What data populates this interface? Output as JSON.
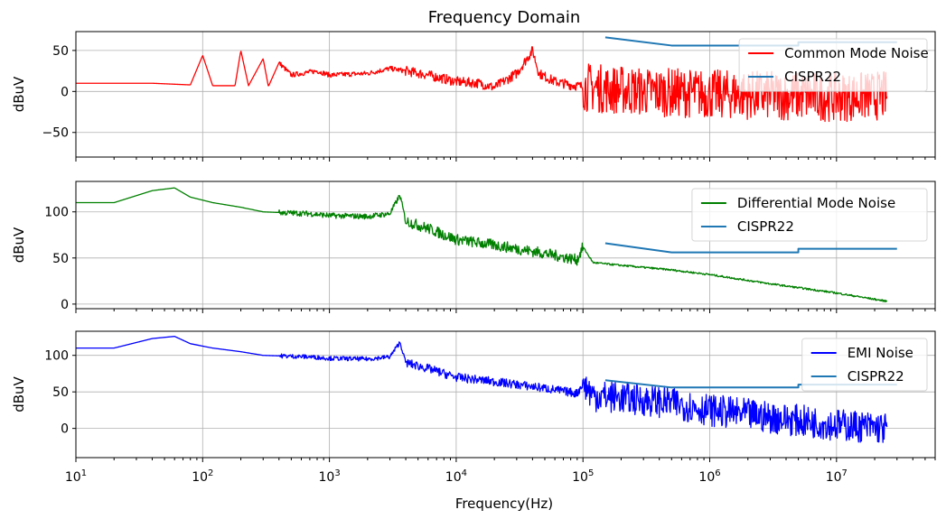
{
  "figure_title": "Frequency Domain",
  "xlabel": "Frequency(Hz)",
  "chart_data": [
    {
      "type": "line",
      "xscale": "log",
      "xlim": [
        10,
        60000000
      ],
      "ylim": [
        -80,
        73
      ],
      "ylabel": "dBuV",
      "yticks": [
        -50,
        0,
        50
      ],
      "grid": true,
      "legend_position": "top-right",
      "series": [
        {
          "name": "Common Mode Noise",
          "color": "#ff0000",
          "noise_band": true,
          "points": [
            [
              10,
              10
            ],
            [
              40,
              10
            ],
            [
              80,
              8
            ],
            [
              100,
              44
            ],
            [
              120,
              7
            ],
            [
              180,
              7
            ],
            [
              200,
              50
            ],
            [
              230,
              7
            ],
            [
              300,
              40
            ],
            [
              330,
              6
            ],
            [
              400,
              35
            ],
            [
              500,
              20
            ],
            [
              600,
              22
            ],
            [
              800,
              25
            ],
            [
              1000,
              20
            ],
            [
              2000,
              22
            ],
            [
              3000,
              28
            ],
            [
              4000,
              25
            ],
            [
              6000,
              20
            ],
            [
              10000,
              12
            ],
            [
              15000,
              10
            ],
            [
              20000,
              5
            ],
            [
              30000,
              22
            ],
            [
              40000,
              50
            ],
            [
              45000,
              22
            ],
            [
              60000,
              12
            ],
            [
              80000,
              8
            ],
            [
              100000,
              6
            ],
            [
              150000,
              3
            ],
            [
              300000,
              0
            ],
            [
              1000000,
              -3
            ],
            [
              3000000,
              -5
            ],
            [
              10000000,
              -7
            ],
            [
              25000000,
              -5
            ]
          ]
        },
        {
          "name": "CISPR22",
          "color": "#1f77b4",
          "points": [
            [
              150000,
              66
            ],
            [
              500000,
              56
            ],
            [
              5000000,
              56
            ],
            [
              5000000,
              60
            ],
            [
              30000000,
              60
            ]
          ]
        }
      ]
    },
    {
      "type": "line",
      "xscale": "log",
      "xlim": [
        10,
        60000000
      ],
      "ylim": [
        -5,
        133
      ],
      "ylabel": "dBuV",
      "yticks": [
        0,
        50,
        100
      ],
      "grid": true,
      "legend_position": "top-right",
      "series": [
        {
          "name": "Differential Mode Noise",
          "color": "#008000",
          "noise_band": true,
          "points": [
            [
              10,
              110
            ],
            [
              20,
              110
            ],
            [
              40,
              123
            ],
            [
              60,
              126
            ],
            [
              80,
              116
            ],
            [
              120,
              110
            ],
            [
              200,
              105
            ],
            [
              300,
              100
            ],
            [
              450,
              99
            ],
            [
              700,
              98
            ],
            [
              1000,
              96
            ],
            [
              2000,
              95
            ],
            [
              3000,
              98
            ],
            [
              3600,
              118
            ],
            [
              4000,
              90
            ],
            [
              6000,
              82
            ],
            [
              10000,
              70
            ],
            [
              20000,
              64
            ],
            [
              50000,
              55
            ],
            [
              90000,
              48
            ],
            [
              100000,
              62
            ],
            [
              120000,
              45
            ],
            [
              200000,
              42
            ],
            [
              500000,
              37
            ],
            [
              1000000,
              32
            ],
            [
              3000000,
              22
            ],
            [
              10000000,
              12
            ],
            [
              25000000,
              3
            ]
          ]
        },
        {
          "name": "CISPR22",
          "color": "#1f77b4",
          "points": [
            [
              150000,
              66
            ],
            [
              500000,
              56
            ],
            [
              5000000,
              56
            ],
            [
              5000000,
              60
            ],
            [
              30000000,
              60
            ]
          ]
        }
      ]
    },
    {
      "type": "line",
      "xscale": "log",
      "xlim": [
        10,
        60000000
      ],
      "ylim": [
        -40,
        133
      ],
      "ylabel": "dBuV",
      "yticks": [
        0,
        50,
        100
      ],
      "grid": true,
      "legend_position": "top-right",
      "series": [
        {
          "name": "EMI Noise",
          "color": "#0000ff",
          "noise_band": true,
          "points": [
            [
              10,
              110
            ],
            [
              20,
              110
            ],
            [
              40,
              123
            ],
            [
              60,
              126
            ],
            [
              80,
              116
            ],
            [
              120,
              110
            ],
            [
              200,
              105
            ],
            [
              300,
              100
            ],
            [
              450,
              99
            ],
            [
              700,
              98
            ],
            [
              1000,
              96
            ],
            [
              2000,
              95
            ],
            [
              3000,
              98
            ],
            [
              3600,
              118
            ],
            [
              4000,
              90
            ],
            [
              6000,
              82
            ],
            [
              10000,
              70
            ],
            [
              20000,
              64
            ],
            [
              50000,
              55
            ],
            [
              90000,
              48
            ],
            [
              100000,
              62
            ],
            [
              120000,
              45
            ],
            [
              200000,
              42
            ],
            [
              500000,
              35
            ],
            [
              1000000,
              25
            ],
            [
              3000000,
              15
            ],
            [
              10000000,
              5
            ],
            [
              25000000,
              0
            ]
          ]
        },
        {
          "name": "CISPR22",
          "color": "#1f77b4",
          "points": [
            [
              150000,
              66
            ],
            [
              500000,
              56
            ],
            [
              5000000,
              56
            ],
            [
              5000000,
              60
            ],
            [
              30000000,
              60
            ]
          ]
        }
      ]
    }
  ],
  "xticks": [
    {
      "base": "10",
      "exp": "1",
      "value": 10
    },
    {
      "base": "10",
      "exp": "2",
      "value": 100
    },
    {
      "base": "10",
      "exp": "3",
      "value": 1000
    },
    {
      "base": "10",
      "exp": "4",
      "value": 10000
    },
    {
      "base": "10",
      "exp": "5",
      "value": 100000
    },
    {
      "base": "10",
      "exp": "6",
      "value": 1000000
    },
    {
      "base": "10",
      "exp": "7",
      "value": 10000000
    }
  ]
}
